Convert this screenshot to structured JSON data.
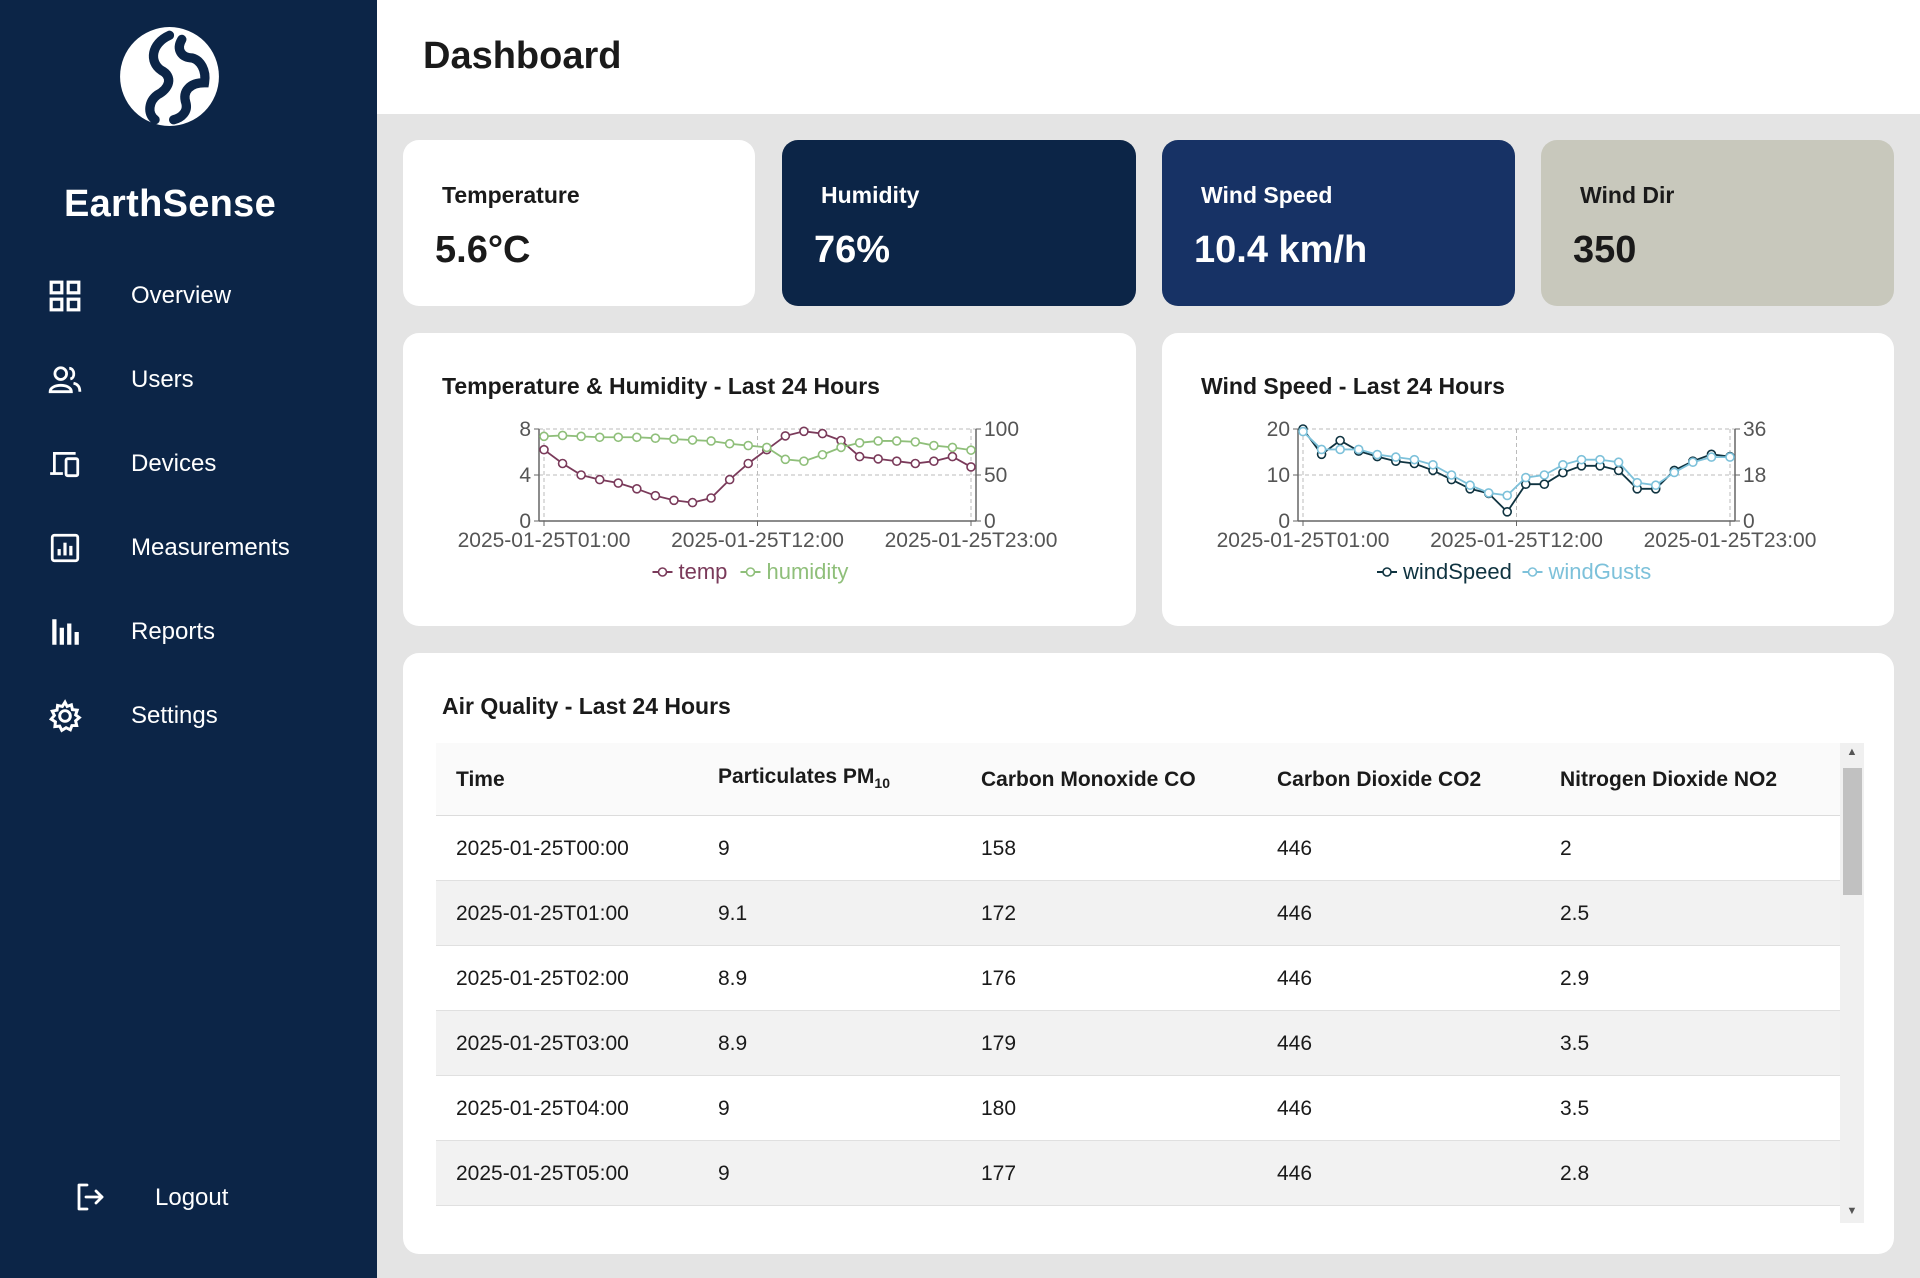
{
  "app": {
    "name": "EarthSense"
  },
  "sidebar": {
    "items": [
      {
        "label": "Overview",
        "icon": "grid-icon"
      },
      {
        "label": "Users",
        "icon": "users-icon"
      },
      {
        "label": "Devices",
        "icon": "devices-icon"
      },
      {
        "label": "Measurements",
        "icon": "chart-box-icon"
      },
      {
        "label": "Reports",
        "icon": "bar-chart-icon"
      },
      {
        "label": "Settings",
        "icon": "gear-icon"
      }
    ],
    "logout_label": "Logout"
  },
  "header": {
    "title": "Dashboard"
  },
  "stats": [
    {
      "label": "Temperature",
      "value": "5.6°C",
      "color": "#ffffff"
    },
    {
      "label": "Humidity",
      "value": "76%",
      "color": "#0c2547"
    },
    {
      "label": "Wind Speed",
      "value": "10.4 km/h",
      "color": "#173265"
    },
    {
      "label": "Wind Dir",
      "value": "350",
      "color": "#c8c8bc"
    }
  ],
  "chart_data": [
    {
      "type": "line",
      "title": "Temperature & Humidity - Last 24 Hours",
      "x_ticks": [
        "2025-01-25T01:00",
        "2025-01-25T12:00",
        "2025-01-25T23:00"
      ],
      "y_left": {
        "ticks": [
          "0",
          "4",
          "8"
        ],
        "range": [
          0,
          8
        ]
      },
      "y_right": {
        "ticks": [
          "0",
          "50",
          "100"
        ],
        "range": [
          0,
          100
        ]
      },
      "legend_position": "bottom",
      "series": [
        {
          "name": "temp",
          "axis": "left",
          "color": "#7a3a5a",
          "values": [
            6.2,
            5.0,
            4.0,
            3.6,
            3.3,
            2.8,
            2.2,
            1.8,
            1.6,
            2.0,
            3.6,
            5.0,
            6.2,
            7.4,
            7.8,
            7.6,
            7.0,
            5.6,
            5.4,
            5.2,
            5.0,
            5.2,
            5.6,
            4.7
          ]
        },
        {
          "name": "humidity",
          "axis": "right",
          "color": "#8fbf7a",
          "values": [
            92,
            93,
            92,
            91,
            91,
            91,
            90,
            89,
            88,
            87,
            84,
            82,
            80,
            67,
            65,
            72,
            80,
            85,
            87,
            87,
            86,
            82,
            80,
            77
          ]
        }
      ]
    },
    {
      "type": "line",
      "title": "Wind Speed - Last 24 Hours",
      "x_ticks": [
        "2025-01-25T01:00",
        "2025-01-25T12:00",
        "2025-01-25T23:00"
      ],
      "y_left": {
        "ticks": [
          "0",
          "10",
          "20"
        ],
        "range": [
          0,
          20
        ]
      },
      "y_right": {
        "ticks": [
          "0",
          "18",
          "36"
        ],
        "range": [
          0,
          36
        ]
      },
      "legend_position": "bottom",
      "series": [
        {
          "name": "windSpeed",
          "axis": "left",
          "color": "#0f3340",
          "values": [
            20,
            14.5,
            17.5,
            15.2,
            14.0,
            13.0,
            12.5,
            11.0,
            9.0,
            7.0,
            6.0,
            2.0,
            8.0,
            8.0,
            10.5,
            12.0,
            12.0,
            11.0,
            7.0,
            7.0,
            11.0,
            13.0,
            14.5,
            14.0
          ]
        },
        {
          "name": "windGusts",
          "axis": "right",
          "color": "#7dc1da",
          "values": [
            35,
            28,
            28,
            28,
            26,
            25,
            24,
            22,
            18,
            14,
            11,
            10,
            17,
            18,
            22,
            24,
            24,
            23,
            15,
            14,
            19,
            23,
            25,
            25
          ]
        }
      ]
    }
  ],
  "air_quality": {
    "title": "Air Quality - Last 24 Hours",
    "columns": [
      "Time",
      "Particulates PM",
      "Carbon Monoxide CO",
      "Carbon Dioxide CO2",
      "Nitrogen Dioxide NO2"
    ],
    "pm_subscript": "10",
    "rows": [
      [
        "2025-01-25T00:00",
        "9",
        "158",
        "446",
        "2"
      ],
      [
        "2025-01-25T01:00",
        "9.1",
        "172",
        "446",
        "2.5"
      ],
      [
        "2025-01-25T02:00",
        "8.9",
        "176",
        "446",
        "2.9"
      ],
      [
        "2025-01-25T03:00",
        "8.9",
        "179",
        "446",
        "3.5"
      ],
      [
        "2025-01-25T04:00",
        "9",
        "180",
        "446",
        "3.5"
      ],
      [
        "2025-01-25T05:00",
        "9",
        "177",
        "446",
        "2.8"
      ]
    ]
  }
}
